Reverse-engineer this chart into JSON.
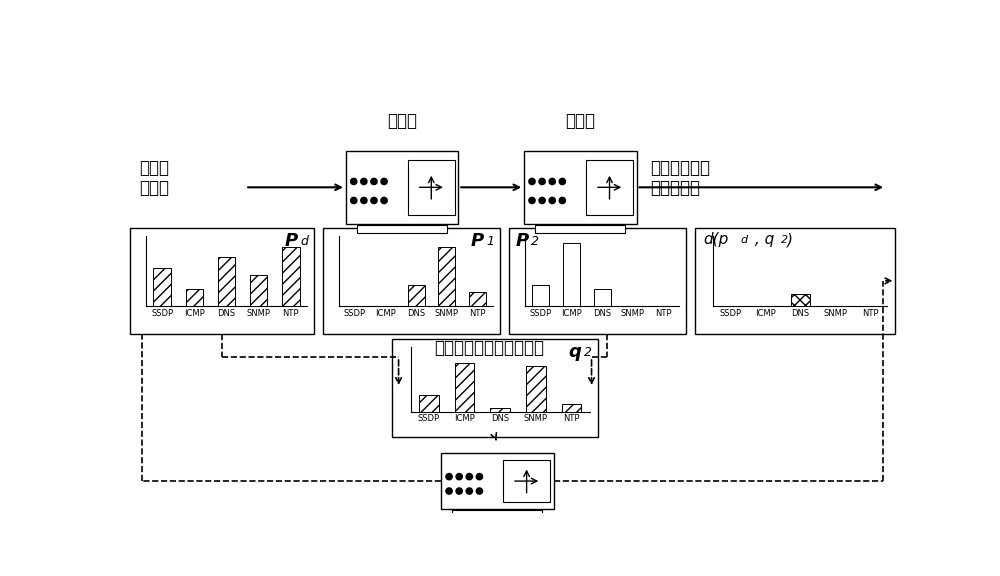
{
  "bg_color": "#ffffff",
  "categories": [
    "SSDP",
    "ICMP",
    "DNS",
    "SNMP",
    "NTP"
  ],
  "pd_values": [
    0.55,
    0.25,
    0.7,
    0.45,
    0.85
  ],
  "p1_values": [
    0.0,
    0.0,
    0.3,
    0.85,
    0.2
  ],
  "p2_values": [
    0.3,
    0.9,
    0.25,
    0.0,
    0.0
  ],
  "dpq_values": [
    0.0,
    0.0,
    0.18,
    0.0,
    0.0
  ],
  "q2_values": [
    0.25,
    0.75,
    0.05,
    0.7,
    0.12
  ],
  "hatch_diagonal": "///",
  "hatch_horizontal": "===",
  "hatch_cross": "xxx",
  "text_hop1": "第一跳",
  "text_hop2": "第二跳",
  "text_malicious_in": "恶意流\n量分布",
  "text_malicious_out": "结合两跳的恶\n意流量分布",
  "text_legal": "结合两跳的合法流量分布",
  "font_size_label": 11,
  "font_size_tick": 7,
  "font_size_chinese": 12
}
